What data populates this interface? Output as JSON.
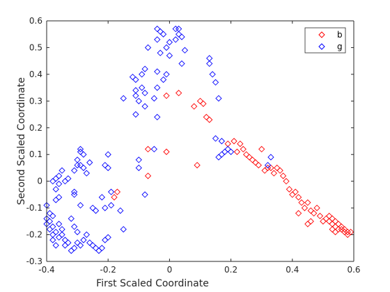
{
  "chart_data": {
    "type": "scatter",
    "title": "",
    "xlabel": "First Scaled Coordinate",
    "ylabel": "Second Scaled Coordinate",
    "xlim": [
      -0.4,
      0.6
    ],
    "ylim": [
      -0.3,
      0.6
    ],
    "xticks": [
      -0.4,
      -0.2,
      0,
      0.2,
      0.4,
      0.6
    ],
    "xtick_labels": [
      "-0.4",
      "-0.2",
      "0",
      "0.2",
      "0.4",
      "0.6"
    ],
    "yticks": [
      -0.3,
      -0.2,
      -0.1,
      0,
      0.1,
      0.2,
      0.3,
      0.4,
      0.5,
      0.6
    ],
    "ytick_labels": [
      "-0.3",
      "-0.2",
      "-0.1",
      "0",
      "0.1",
      "0.2",
      "0.3",
      "0.4",
      "0.5",
      "0.6"
    ],
    "grid": false,
    "legend_position": "top-right",
    "marker": "diamond-open",
    "series": [
      {
        "name": "b",
        "color": "#ff0000",
        "points": [
          [
            -0.01,
            0.32
          ],
          [
            0.03,
            0.33
          ],
          [
            0.1,
            0.3
          ],
          [
            0.11,
            0.29
          ],
          [
            0.08,
            0.28
          ],
          [
            0.12,
            0.24
          ],
          [
            0.13,
            0.23
          ],
          [
            -0.07,
            0.12
          ],
          [
            -0.01,
            0.11
          ],
          [
            -0.07,
            0.02
          ],
          [
            0.09,
            0.06
          ],
          [
            -0.17,
            -0.04
          ],
          [
            -0.18,
            -0.06
          ],
          [
            0.19,
            0.14
          ],
          [
            0.21,
            0.15
          ],
          [
            0.23,
            0.14
          ],
          [
            0.24,
            0.12
          ],
          [
            0.25,
            0.1
          ],
          [
            0.22,
            0.11
          ],
          [
            0.26,
            0.09
          ],
          [
            0.27,
            0.08
          ],
          [
            0.28,
            0.07
          ],
          [
            0.3,
            0.12
          ],
          [
            0.29,
            0.06
          ],
          [
            0.31,
            0.04
          ],
          [
            0.32,
            0.05
          ],
          [
            0.33,
            0.05
          ],
          [
            0.34,
            0.03
          ],
          [
            0.35,
            0.05
          ],
          [
            0.36,
            0.04
          ],
          [
            0.37,
            0.02
          ],
          [
            0.38,
            0.0
          ],
          [
            0.39,
            -0.03
          ],
          [
            0.4,
            -0.05
          ],
          [
            0.41,
            -0.04
          ],
          [
            0.42,
            -0.06
          ],
          [
            0.43,
            -0.08
          ],
          [
            0.44,
            -0.1
          ],
          [
            0.45,
            -0.08
          ],
          [
            0.46,
            -0.11
          ],
          [
            0.47,
            -0.12
          ],
          [
            0.48,
            -0.1
          ],
          [
            0.49,
            -0.13
          ],
          [
            0.5,
            -0.15
          ],
          [
            0.42,
            -0.12
          ],
          [
            0.51,
            -0.14
          ],
          [
            0.52,
            -0.13
          ],
          [
            0.52,
            -0.15
          ],
          [
            0.53,
            -0.16
          ],
          [
            0.53,
            -0.14
          ],
          [
            0.54,
            -0.17
          ],
          [
            0.54,
            -0.15
          ],
          [
            0.55,
            -0.16
          ],
          [
            0.55,
            -0.18
          ],
          [
            0.56,
            -0.17
          ],
          [
            0.57,
            -0.18
          ],
          [
            0.58,
            -0.19
          ],
          [
            0.59,
            -0.19
          ],
          [
            0.58,
            -0.2
          ],
          [
            0.53,
            -0.18
          ],
          [
            0.54,
            -0.19
          ],
          [
            0.56,
            -0.18
          ],
          [
            0.57,
            -0.19
          ],
          [
            0.46,
            -0.15
          ],
          [
            0.45,
            -0.16
          ]
        ]
      },
      {
        "name": "g",
        "color": "#0000ff",
        "points": [
          [
            -0.04,
            0.57
          ],
          [
            -0.03,
            0.56
          ],
          [
            -0.02,
            0.55
          ],
          [
            -0.04,
            0.53
          ],
          [
            0.02,
            0.57
          ],
          [
            0.03,
            0.57
          ],
          [
            0.03,
            0.55
          ],
          [
            0.02,
            0.53
          ],
          [
            0.04,
            0.54
          ],
          [
            0.0,
            0.52
          ],
          [
            -0.01,
            0.5
          ],
          [
            -0.07,
            0.5
          ],
          [
            -0.03,
            0.48
          ],
          [
            0.05,
            0.49
          ],
          [
            0.0,
            0.47
          ],
          [
            -0.08,
            0.42
          ],
          [
            -0.09,
            0.4
          ],
          [
            0.13,
            0.46
          ],
          [
            0.13,
            0.44
          ],
          [
            -0.11,
            0.38
          ],
          [
            -0.12,
            0.39
          ],
          [
            0.04,
            0.44
          ],
          [
            -0.04,
            0.41
          ],
          [
            -0.09,
            0.35
          ],
          [
            -0.02,
            0.38
          ],
          [
            -0.01,
            0.4
          ],
          [
            0.14,
            0.4
          ],
          [
            0.15,
            0.37
          ],
          [
            -0.11,
            0.34
          ],
          [
            -0.11,
            0.32
          ],
          [
            -0.1,
            0.3
          ],
          [
            -0.08,
            0.33
          ],
          [
            -0.05,
            0.31
          ],
          [
            -0.04,
            0.35
          ],
          [
            -0.15,
            0.31
          ],
          [
            -0.11,
            0.25
          ],
          [
            -0.08,
            0.28
          ],
          [
            -0.04,
            0.24
          ],
          [
            0.16,
            0.31
          ],
          [
            0.15,
            0.16
          ],
          [
            0.17,
            0.15
          ],
          [
            0.18,
            0.11
          ],
          [
            0.19,
            0.12
          ],
          [
            0.2,
            0.11
          ],
          [
            0.17,
            0.1
          ],
          [
            0.16,
            0.09
          ],
          [
            0.33,
            0.09
          ],
          [
            0.32,
            0.06
          ],
          [
            -0.29,
            0.12
          ],
          [
            -0.29,
            0.11
          ],
          [
            -0.28,
            0.1
          ],
          [
            -0.3,
            0.08
          ],
          [
            -0.29,
            0.06
          ],
          [
            -0.28,
            0.05
          ],
          [
            -0.26,
            0.07
          ],
          [
            -0.27,
            0.03
          ],
          [
            -0.3,
            0.06
          ],
          [
            -0.31,
            0.04
          ],
          [
            -0.21,
            0.06
          ],
          [
            -0.2,
            0.05
          ],
          [
            -0.2,
            0.1
          ],
          [
            -0.1,
            0.08
          ],
          [
            -0.1,
            0.05
          ],
          [
            -0.05,
            0.12
          ],
          [
            -0.35,
            0.04
          ],
          [
            -0.36,
            0.02
          ],
          [
            -0.37,
            0.01
          ],
          [
            -0.38,
            0.0
          ],
          [
            -0.36,
            -0.01
          ],
          [
            -0.37,
            -0.03
          ],
          [
            -0.36,
            -0.06
          ],
          [
            -0.37,
            -0.07
          ],
          [
            -0.34,
            0.0
          ],
          [
            -0.33,
            0.01
          ],
          [
            -0.31,
            -0.04
          ],
          [
            -0.31,
            -0.05
          ],
          [
            -0.29,
            -0.09
          ],
          [
            -0.25,
            -0.1
          ],
          [
            -0.19,
            -0.04
          ],
          [
            -0.19,
            -0.09
          ],
          [
            -0.16,
            -0.11
          ],
          [
            -0.08,
            -0.05
          ],
          [
            -0.15,
            -0.18
          ],
          [
            -0.21,
            -0.1
          ],
          [
            -0.22,
            -0.06
          ],
          [
            -0.24,
            -0.11
          ],
          [
            -0.4,
            -0.09
          ],
          [
            -0.39,
            -0.12
          ],
          [
            -0.4,
            -0.14
          ],
          [
            -0.39,
            -0.15
          ],
          [
            -0.4,
            -0.16
          ],
          [
            -0.38,
            -0.13
          ],
          [
            -0.38,
            -0.17
          ],
          [
            -0.39,
            -0.18
          ],
          [
            -0.38,
            -0.2
          ],
          [
            -0.37,
            -0.19
          ],
          [
            -0.36,
            -0.16
          ],
          [
            -0.36,
            -0.21
          ],
          [
            -0.35,
            -0.18
          ],
          [
            -0.35,
            -0.2
          ],
          [
            -0.34,
            -0.22
          ],
          [
            -0.33,
            -0.23
          ],
          [
            -0.34,
            -0.24
          ],
          [
            -0.32,
            -0.26
          ],
          [
            -0.31,
            -0.25
          ],
          [
            -0.3,
            -0.23
          ],
          [
            -0.29,
            -0.24
          ],
          [
            -0.28,
            -0.22
          ],
          [
            -0.27,
            -0.2
          ],
          [
            -0.26,
            -0.23
          ],
          [
            -0.25,
            -0.24
          ],
          [
            -0.24,
            -0.25
          ],
          [
            -0.23,
            -0.26
          ],
          [
            -0.22,
            -0.25
          ],
          [
            -0.21,
            -0.22
          ],
          [
            -0.2,
            -0.21
          ],
          [
            -0.32,
            -0.14
          ],
          [
            -0.31,
            -0.17
          ],
          [
            -0.3,
            -0.19
          ],
          [
            -0.37,
            -0.24
          ],
          [
            -0.38,
            -0.22
          ]
        ]
      }
    ]
  }
}
